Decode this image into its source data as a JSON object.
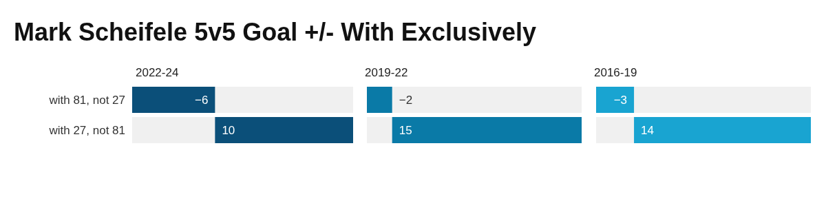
{
  "chart_data": [
    {
      "type": "bar",
      "orientation": "horizontal",
      "title": "Mark Scheifele 5v5 Goal +/- With Exclusively",
      "subtitle": "2022-24",
      "categories": [
        "with 81, not 27",
        "with 27, not 81"
      ],
      "values": [
        -6,
        10
      ],
      "color": "#0b4f79",
      "xlim": [
        -6,
        10
      ],
      "data_labels": true
    },
    {
      "type": "bar",
      "orientation": "horizontal",
      "subtitle": "2019-22",
      "categories": [
        null,
        null
      ],
      "values": [
        -2,
        15
      ],
      "color": "#0a7aa7",
      "xlim": [
        -2,
        15
      ],
      "data_labels": true
    },
    {
      "type": "bar",
      "orientation": "horizontal",
      "subtitle": "2016-19",
      "categories": [
        null,
        null
      ],
      "values": [
        -3,
        14
      ],
      "color": "#19a4d1",
      "xlim": [
        -3,
        14
      ],
      "data_labels": true
    }
  ]
}
